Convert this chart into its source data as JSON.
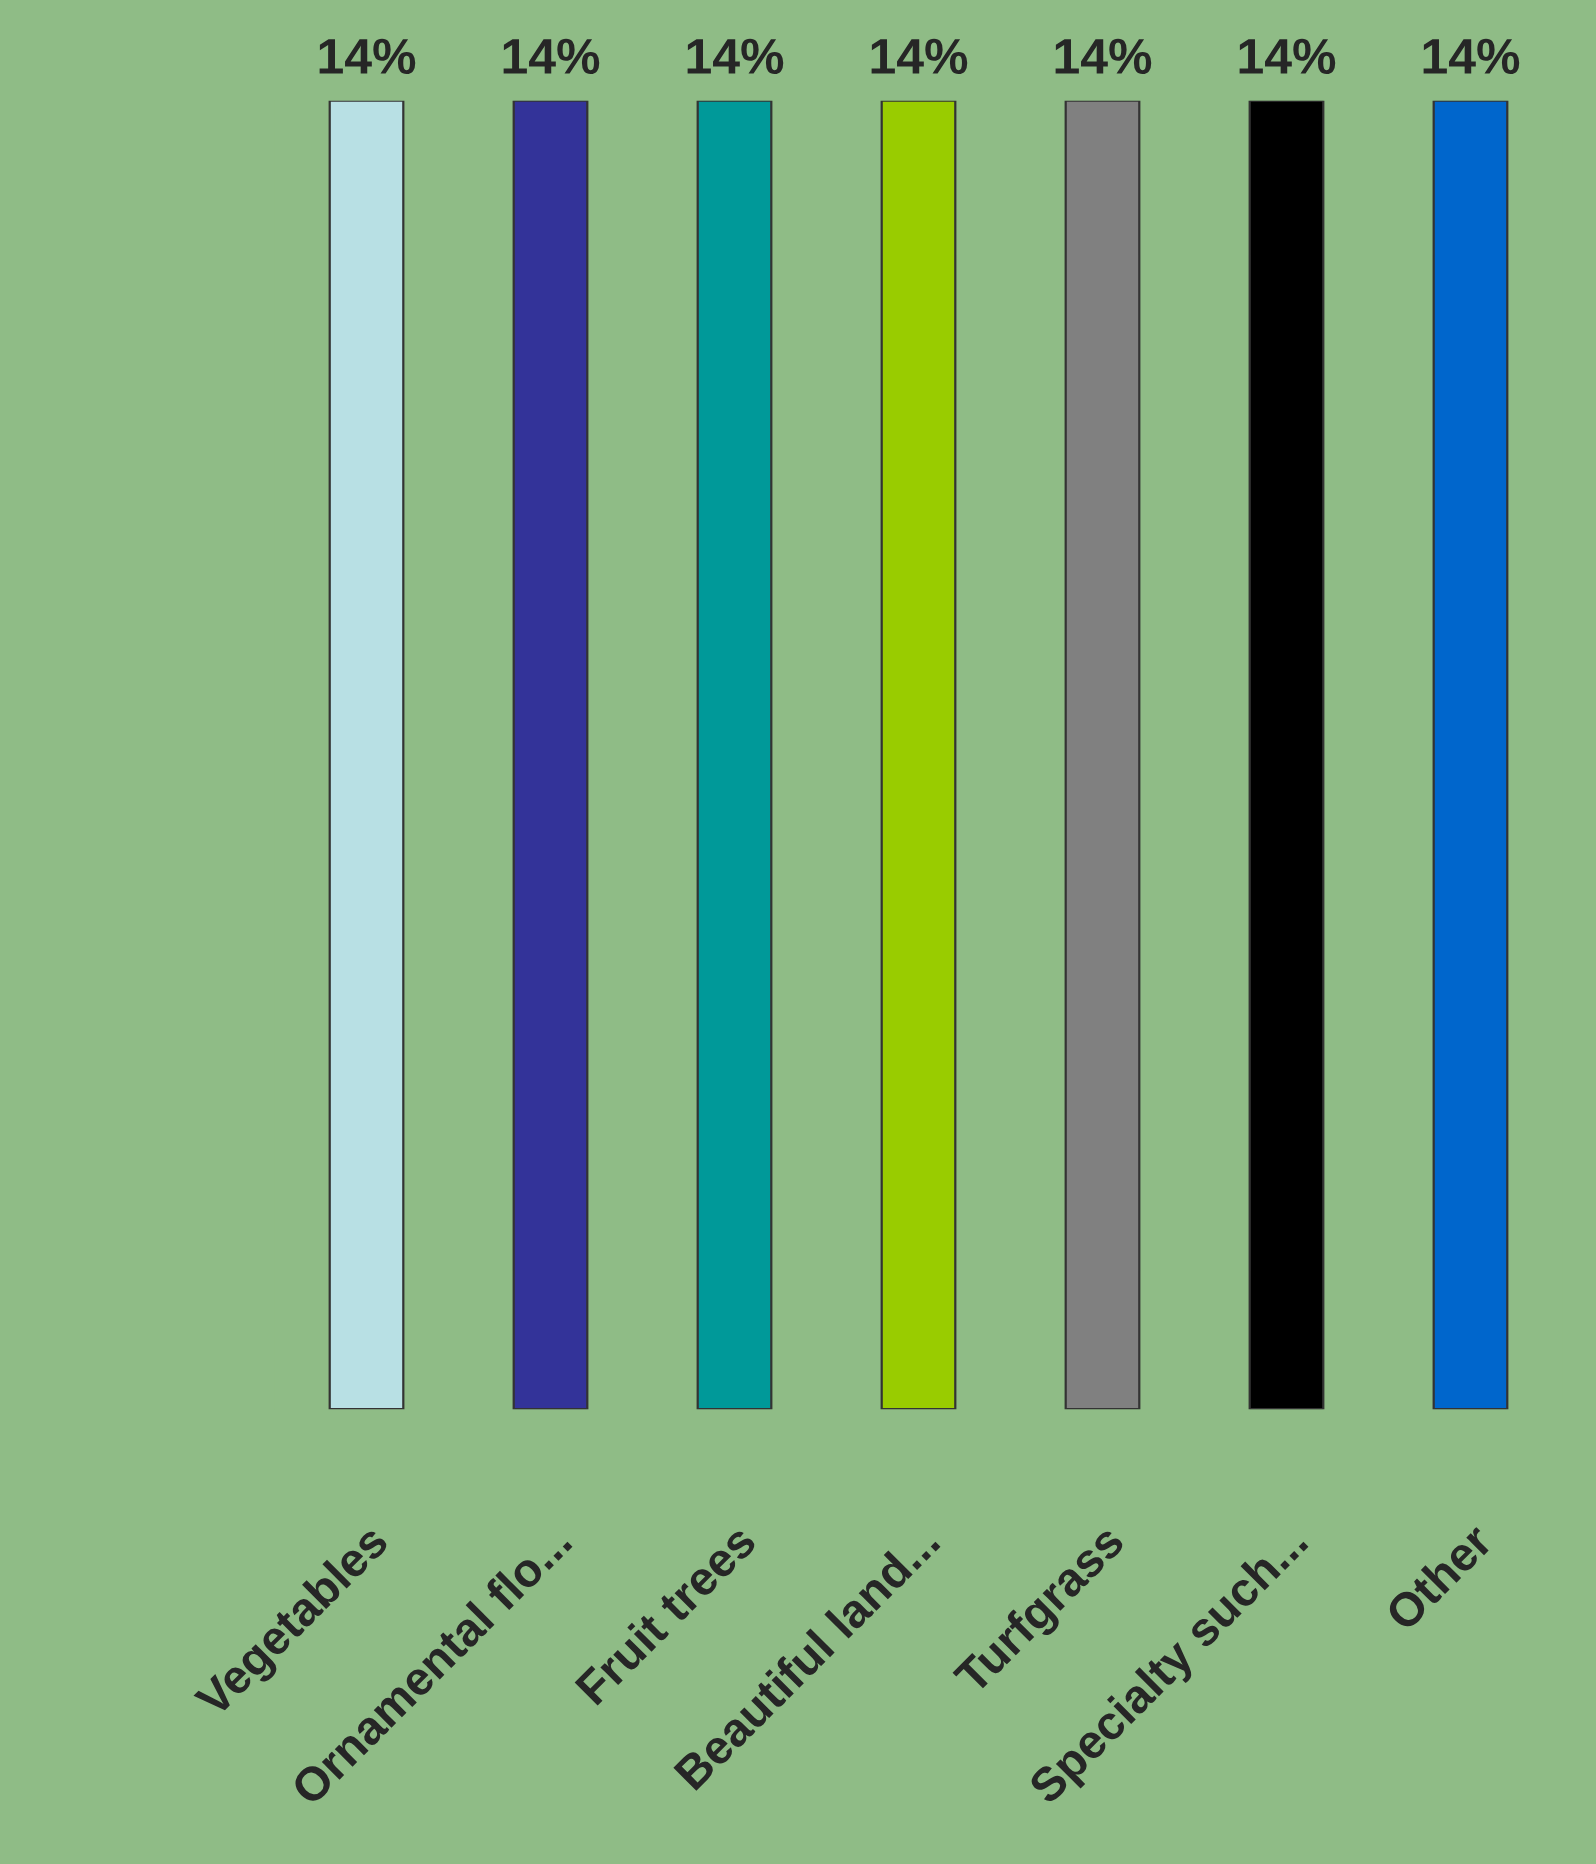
{
  "chart_data": {
    "type": "bar",
    "categories": [
      "Vegetables",
      "Ornamental flo...",
      "Fruit trees",
      "Beautiful land...",
      "Turfgrass",
      "Specialty such...",
      "Other"
    ],
    "values": [
      14,
      14,
      14,
      14,
      14,
      14,
      14
    ],
    "colors": [
      "#b8e0e4",
      "#333399",
      "#009999",
      "#99cc00",
      "#808080",
      "#000000",
      "#0066cc"
    ],
    "value_labels": [
      "14%",
      "14%",
      "14%",
      "14%",
      "14%",
      "14%",
      "14%"
    ],
    "grid": false,
    "legend": false
  }
}
